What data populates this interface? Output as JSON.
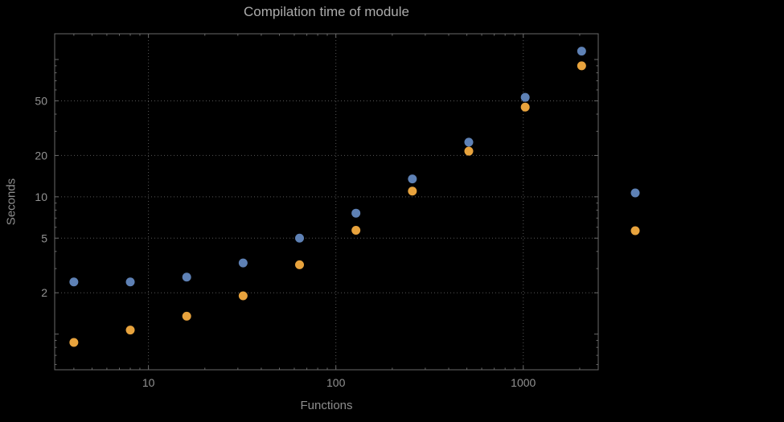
{
  "chart_data": {
    "type": "scatter",
    "title": "Compilation time of module",
    "xlabel": "Functions",
    "ylabel": "Seconds",
    "x_scale": "log",
    "y_scale": "log",
    "xlim": [
      3.16,
      2512
    ],
    "ylim": [
      0.55,
      154
    ],
    "x_ticks": [
      10,
      100,
      1000
    ],
    "y_ticks": [
      2,
      5,
      10,
      20,
      50
    ],
    "grid": "dotted",
    "x": [
      4,
      8,
      16,
      32,
      64,
      128,
      256,
      512,
      1024,
      2048
    ],
    "series": [
      {
        "name": "series-1",
        "color": "#5e81b5",
        "values": [
          2.4,
          2.4,
          2.6,
          3.3,
          5.0,
          7.6,
          13.5,
          25,
          53,
          115
        ]
      },
      {
        "name": "series-2",
        "color": "#e8a33d",
        "values": [
          0.87,
          1.07,
          1.35,
          1.9,
          3.2,
          5.7,
          11,
          21.5,
          45,
          90
        ]
      }
    ],
    "legend": {
      "position": "right",
      "items": [
        {
          "label": "",
          "color": "#5e81b5"
        },
        {
          "label": "",
          "color": "#e8a33d"
        }
      ]
    }
  },
  "colors": {
    "background": "#000000",
    "frame": "#6a6a6a",
    "grid": "#565656",
    "title_text": "#ababab",
    "axis_text": "#8d8d8d",
    "tick_text": "#929292"
  }
}
